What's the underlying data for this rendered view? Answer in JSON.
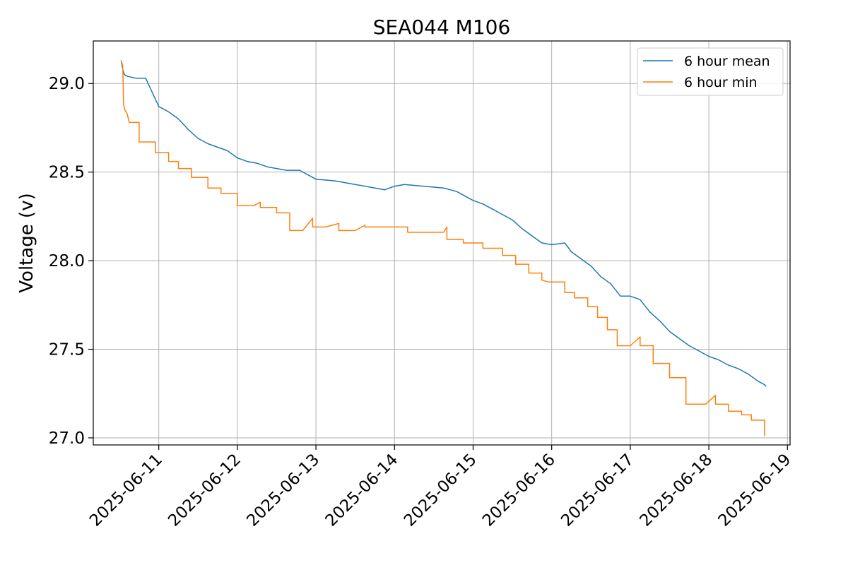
{
  "chart_data": {
    "type": "line",
    "title": "SEA044 M106",
    "xlabel": "",
    "ylabel": "Voltage (v)",
    "xlim": [
      "2025-06-10T04:00",
      "2025-06-19T00:48"
    ],
    "ylim": [
      26.96,
      29.24
    ],
    "x_ticks": [
      "2025-06-11",
      "2025-06-12",
      "2025-06-13",
      "2025-06-14",
      "2025-06-15",
      "2025-06-16",
      "2025-06-17",
      "2025-06-18",
      "2025-06-19"
    ],
    "y_ticks": [
      "27.0",
      "27.5",
      "28.0",
      "28.5",
      "29.0"
    ],
    "grid": true,
    "legend_position": "top-right",
    "series": [
      {
        "name": "6 hour mean",
        "color": "#1f77b4",
        "points": [
          [
            "2025-06-10T12:30",
            29.13
          ],
          [
            "2025-06-10T13:00",
            29.08
          ],
          [
            "2025-06-10T13:30",
            29.05
          ],
          [
            "2025-06-10T14:30",
            29.04
          ],
          [
            "2025-06-10T17:00",
            29.03
          ],
          [
            "2025-06-10T20:00",
            29.03
          ],
          [
            "2025-06-11T00:00",
            28.87
          ],
          [
            "2025-06-11T03:00",
            28.84
          ],
          [
            "2025-06-11T06:00",
            28.8
          ],
          [
            "2025-06-11T09:00",
            28.74
          ],
          [
            "2025-06-11T12:00",
            28.69
          ],
          [
            "2025-06-11T15:00",
            28.66
          ],
          [
            "2025-06-11T18:00",
            28.64
          ],
          [
            "2025-06-11T21:00",
            28.62
          ],
          [
            "2025-06-12T00:00",
            28.58
          ],
          [
            "2025-06-12T03:00",
            28.56
          ],
          [
            "2025-06-12T06:00",
            28.55
          ],
          [
            "2025-06-12T09:00",
            28.53
          ],
          [
            "2025-06-12T12:00",
            28.52
          ],
          [
            "2025-06-12T15:00",
            28.51
          ],
          [
            "2025-06-12T19:00",
            28.51
          ],
          [
            "2025-06-13T00:00",
            28.46
          ],
          [
            "2025-06-13T06:00",
            28.45
          ],
          [
            "2025-06-13T12:00",
            28.43
          ],
          [
            "2025-06-13T18:00",
            28.41
          ],
          [
            "2025-06-13T21:00",
            28.4
          ],
          [
            "2025-06-14T00:00",
            28.42
          ],
          [
            "2025-06-14T03:00",
            28.43
          ],
          [
            "2025-06-14T09:00",
            28.42
          ],
          [
            "2025-06-14T15:00",
            28.41
          ],
          [
            "2025-06-14T19:00",
            28.39
          ],
          [
            "2025-06-14T22:00",
            28.36
          ],
          [
            "2025-06-15T00:00",
            28.34
          ],
          [
            "2025-06-15T03:00",
            28.32
          ],
          [
            "2025-06-15T06:00",
            28.29
          ],
          [
            "2025-06-15T09:00",
            28.26
          ],
          [
            "2025-06-15T12:00",
            28.23
          ],
          [
            "2025-06-15T15:00",
            28.18
          ],
          [
            "2025-06-15T18:00",
            28.14
          ],
          [
            "2025-06-15T21:00",
            28.1
          ],
          [
            "2025-06-16T00:00",
            28.09
          ],
          [
            "2025-06-16T04:00",
            28.1
          ],
          [
            "2025-06-16T06:00",
            28.05
          ],
          [
            "2025-06-16T09:00",
            28.01
          ],
          [
            "2025-06-16T12:00",
            27.97
          ],
          [
            "2025-06-16T15:00",
            27.91
          ],
          [
            "2025-06-16T18:00",
            27.87
          ],
          [
            "2025-06-16T21:00",
            27.8
          ],
          [
            "2025-06-17T00:00",
            27.8
          ],
          [
            "2025-06-17T03:00",
            27.78
          ],
          [
            "2025-06-17T06:00",
            27.71
          ],
          [
            "2025-06-17T09:00",
            27.66
          ],
          [
            "2025-06-17T12:00",
            27.6
          ],
          [
            "2025-06-17T15:00",
            27.56
          ],
          [
            "2025-06-17T18:00",
            27.52
          ],
          [
            "2025-06-17T21:00",
            27.49
          ],
          [
            "2025-06-18T00:00",
            27.46
          ],
          [
            "2025-06-18T03:00",
            27.44
          ],
          [
            "2025-06-18T06:00",
            27.41
          ],
          [
            "2025-06-18T09:00",
            27.39
          ],
          [
            "2025-06-18T12:00",
            27.36
          ],
          [
            "2025-06-18T15:00",
            27.32
          ],
          [
            "2025-06-18T17:00",
            27.3
          ],
          [
            "2025-06-18T17:30",
            27.29
          ]
        ]
      },
      {
        "name": "6 hour min",
        "color": "#ff7f0e",
        "points": [
          [
            "2025-06-10T12:30",
            29.13
          ],
          [
            "2025-06-10T13:00",
            29.1
          ],
          [
            "2025-06-10T13:15",
            28.88
          ],
          [
            "2025-06-10T13:40",
            28.85
          ],
          [
            "2025-06-10T14:20",
            28.83
          ],
          [
            "2025-06-10T15:00",
            28.78
          ],
          [
            "2025-06-10T18:00",
            28.78
          ],
          [
            "2025-06-10T18:00",
            28.67
          ],
          [
            "2025-06-10T23:00",
            28.67
          ],
          [
            "2025-06-10T23:00",
            28.61
          ],
          [
            "2025-06-11T03:00",
            28.61
          ],
          [
            "2025-06-11T03:00",
            28.56
          ],
          [
            "2025-06-11T06:00",
            28.56
          ],
          [
            "2025-06-11T06:00",
            28.52
          ],
          [
            "2025-06-11T10:00",
            28.52
          ],
          [
            "2025-06-11T10:00",
            28.47
          ],
          [
            "2025-06-11T15:00",
            28.47
          ],
          [
            "2025-06-11T15:00",
            28.41
          ],
          [
            "2025-06-11T19:00",
            28.41
          ],
          [
            "2025-06-11T19:00",
            28.38
          ],
          [
            "2025-06-12T00:00",
            28.38
          ],
          [
            "2025-06-12T00:00",
            28.31
          ],
          [
            "2025-06-12T05:00",
            28.31
          ],
          [
            "2025-06-12T07:00",
            28.33
          ],
          [
            "2025-06-12T07:00",
            28.3
          ],
          [
            "2025-06-12T12:00",
            28.3
          ],
          [
            "2025-06-12T12:00",
            28.27
          ],
          [
            "2025-06-12T16:00",
            28.27
          ],
          [
            "2025-06-12T16:00",
            28.17
          ],
          [
            "2025-06-12T20:00",
            28.17
          ],
          [
            "2025-06-12T23:00",
            28.24
          ],
          [
            "2025-06-12T23:00",
            28.19
          ],
          [
            "2025-06-13T03:00",
            28.19
          ],
          [
            "2025-06-13T07:00",
            28.21
          ],
          [
            "2025-06-13T07:00",
            28.17
          ],
          [
            "2025-06-13T12:00",
            28.17
          ],
          [
            "2025-06-13T15:00",
            28.2
          ],
          [
            "2025-06-13T15:00",
            28.19
          ],
          [
            "2025-06-14T00:00",
            28.19
          ],
          [
            "2025-06-14T04:00",
            28.19
          ],
          [
            "2025-06-14T04:00",
            28.16
          ],
          [
            "2025-06-14T15:00",
            28.16
          ],
          [
            "2025-06-14T16:00",
            28.19
          ],
          [
            "2025-06-14T16:00",
            28.12
          ],
          [
            "2025-06-14T21:00",
            28.12
          ],
          [
            "2025-06-14T21:00",
            28.1
          ],
          [
            "2025-06-15T03:00",
            28.1
          ],
          [
            "2025-06-15T03:00",
            28.07
          ],
          [
            "2025-06-15T09:00",
            28.07
          ],
          [
            "2025-06-15T09:00",
            28.03
          ],
          [
            "2025-06-15T13:00",
            28.03
          ],
          [
            "2025-06-15T13:00",
            27.98
          ],
          [
            "2025-06-15T17:00",
            27.98
          ],
          [
            "2025-06-15T17:00",
            27.93
          ],
          [
            "2025-06-15T21:00",
            27.93
          ],
          [
            "2025-06-15T21:00",
            27.89
          ],
          [
            "2025-06-15T23:00",
            27.88
          ],
          [
            "2025-06-16T04:00",
            27.88
          ],
          [
            "2025-06-16T04:00",
            27.82
          ],
          [
            "2025-06-16T07:00",
            27.82
          ],
          [
            "2025-06-16T07:00",
            27.79
          ],
          [
            "2025-06-16T11:00",
            27.79
          ],
          [
            "2025-06-16T11:00",
            27.74
          ],
          [
            "2025-06-16T14:00",
            27.74
          ],
          [
            "2025-06-16T14:00",
            27.68
          ],
          [
            "2025-06-16T17:00",
            27.68
          ],
          [
            "2025-06-16T17:00",
            27.61
          ],
          [
            "2025-06-16T20:00",
            27.61
          ],
          [
            "2025-06-16T20:00",
            27.52
          ],
          [
            "2025-06-17T00:00",
            27.52
          ],
          [
            "2025-06-17T03:00",
            27.57
          ],
          [
            "2025-06-17T03:00",
            27.52
          ],
          [
            "2025-06-17T07:00",
            27.52
          ],
          [
            "2025-06-17T07:00",
            27.42
          ],
          [
            "2025-06-17T12:00",
            27.42
          ],
          [
            "2025-06-17T12:00",
            27.34
          ],
          [
            "2025-06-17T17:00",
            27.34
          ],
          [
            "2025-06-17T17:00",
            27.19
          ],
          [
            "2025-06-17T23:00",
            27.19
          ],
          [
            "2025-06-18T02:00",
            27.24
          ],
          [
            "2025-06-18T02:00",
            27.19
          ],
          [
            "2025-06-18T06:00",
            27.19
          ],
          [
            "2025-06-18T06:00",
            27.15
          ],
          [
            "2025-06-18T10:00",
            27.15
          ],
          [
            "2025-06-18T10:00",
            27.13
          ],
          [
            "2025-06-18T13:00",
            27.13
          ],
          [
            "2025-06-18T13:00",
            27.1
          ],
          [
            "2025-06-18T17:00",
            27.1
          ],
          [
            "2025-06-18T17:00",
            27.01
          ]
        ]
      }
    ]
  }
}
